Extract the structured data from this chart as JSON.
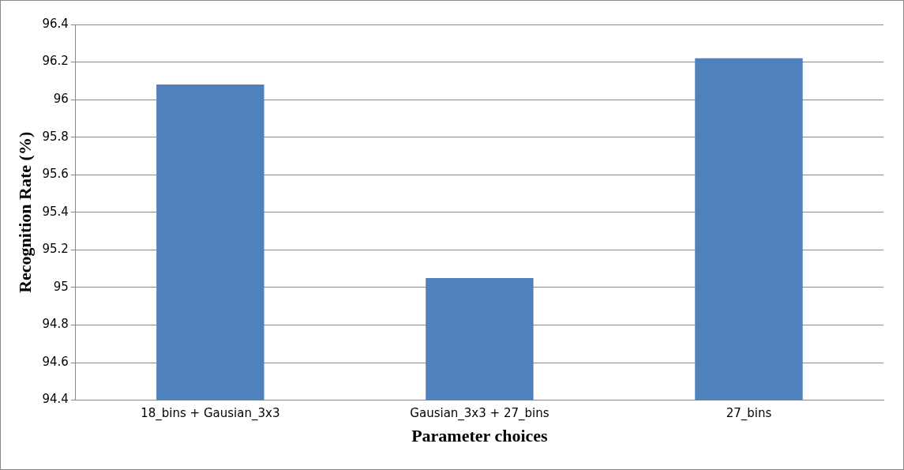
{
  "chart_data": {
    "type": "bar",
    "xlabel": "Parameter choices",
    "ylabel": "Recognition Rate (%)",
    "categories": [
      "18_bins + Gausian_3x3",
      "Gausian_3x3 + 27_bins",
      "27_bins"
    ],
    "values": [
      96.08,
      95.05,
      96.22
    ],
    "color": "#4f81bd",
    "ylim": [
      94.4,
      96.4
    ],
    "yticks": [
      94.4,
      94.6,
      94.8,
      95,
      95.2,
      95.4,
      95.6,
      95.8,
      96,
      96.2,
      96.4
    ],
    "grid": "y",
    "legend": false
  }
}
